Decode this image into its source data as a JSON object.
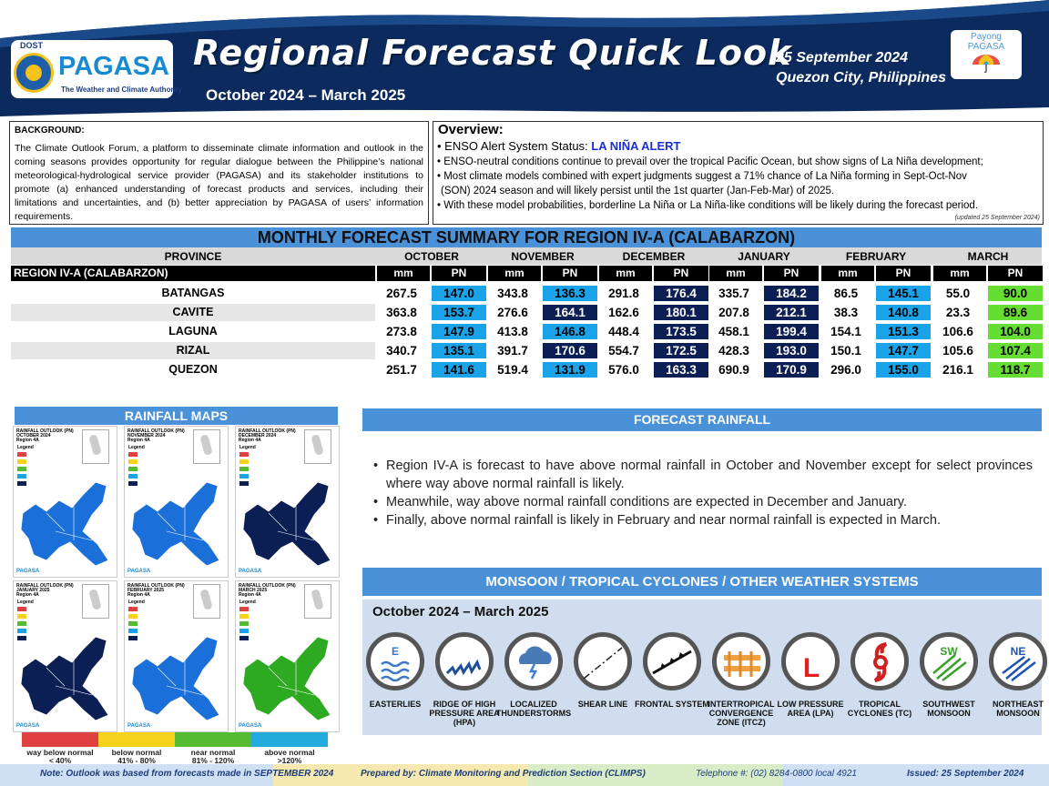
{
  "header": {
    "agency": "PAGASA",
    "dost": "DOST",
    "tagline": "The Weather and Climate Authority",
    "title": "Regional Forecast Quick Look",
    "period": "October 2024 – March 2025",
    "date": "25 September 2024",
    "place": "Quezon City, Philippines",
    "payong": "Payong PAGASA"
  },
  "background": {
    "heading": "BACKGROUND:",
    "text": "The Climate Outlook Forum, a platform to disseminate climate information and outlook in the coming seasons provides opportunity for regular dialogue between the Philippine’s national meteorological-hydrological service provider (PAGASA) and its stakeholder institutions to promote (a) enhanced understanding of forecast products and services, including their limitations and uncertainties, and (b) better appreciation by PAGASA of users’ information requirements."
  },
  "overview": {
    "heading": "Overview:",
    "status_prefix": "• ENSO Alert System Status: ",
    "status": "LA NIÑA ALERT",
    "b1": "• ENSO-neutral conditions continue to prevail over the tropical Pacific Ocean, but show signs of La Niña development;",
    "b2a": "• Most climate models combined with expert judgments suggest a 71% chance of La Niña forming in Sept-Oct-Nov",
    "b2b": "(SON) 2024 season and will likely persist until the 1st quarter (Jan-Feb-Mar) of 2025.",
    "b3": "• With these model probabilities, borderline La Niña or La Niña-like conditions will be likely during the forecast period.",
    "updated": "(updated 25 September 2024)"
  },
  "table": {
    "title": "MONTHLY FORECAST SUMMARY FOR REGION IV-A  (CALABARZON)",
    "province_header": "PROVINCE",
    "region": "REGION IV-A  (CALABARZON)",
    "months": [
      "OCTOBER",
      "NOVEMBER",
      "DECEMBER",
      "JANUARY",
      "FEBRUARY",
      "MARCH"
    ],
    "mm_label": "mm",
    "pn_label": "PN",
    "rows": [
      {
        "province": "BATANGAS",
        "mm": [
          "267.5",
          "343.8",
          "291.8",
          "335.7",
          "86.5",
          "55.0"
        ],
        "pn": [
          "147.0",
          "136.3",
          "176.4",
          "184.2",
          "145.1",
          "90.0"
        ],
        "cat": [
          "above",
          "above",
          "wayabove",
          "wayabove",
          "above",
          "near"
        ]
      },
      {
        "province": "CAVITE",
        "mm": [
          "363.8",
          "276.6",
          "162.6",
          "207.8",
          "38.3",
          "23.3"
        ],
        "pn": [
          "153.7",
          "164.1",
          "180.1",
          "212.1",
          "140.8",
          "89.6"
        ],
        "cat": [
          "above",
          "wayabove",
          "wayabove",
          "wayabove",
          "above",
          "near"
        ]
      },
      {
        "province": "LAGUNA",
        "mm": [
          "273.8",
          "413.8",
          "448.4",
          "458.1",
          "154.1",
          "106.6"
        ],
        "pn": [
          "147.9",
          "146.8",
          "173.5",
          "199.4",
          "151.3",
          "104.0"
        ],
        "cat": [
          "above",
          "above",
          "wayabove",
          "wayabove",
          "above",
          "near"
        ]
      },
      {
        "province": "RIZAL",
        "mm": [
          "340.7",
          "391.7",
          "554.7",
          "428.3",
          "150.1",
          "105.6"
        ],
        "pn": [
          "135.1",
          "170.6",
          "172.5",
          "193.0",
          "147.7",
          "107.4"
        ],
        "cat": [
          "above",
          "wayabove",
          "wayabove",
          "wayabove",
          "above",
          "near"
        ]
      },
      {
        "province": "QUEZON",
        "mm": [
          "251.7",
          "519.4",
          "576.0",
          "690.9",
          "296.0",
          "216.1"
        ],
        "pn": [
          "141.6",
          "131.9",
          "163.3",
          "170.9",
          "155.0",
          "118.7"
        ],
        "cat": [
          "above",
          "above",
          "wayabove",
          "wayabove",
          "above",
          "near"
        ]
      }
    ]
  },
  "colors": {
    "above": "#1aa3e8",
    "wayabove": "#0c1f55",
    "near": "#66dd33",
    "accent": "#4a91d8"
  },
  "maps": {
    "heading": "RAINFALL MAPS",
    "items": [
      {
        "t1": "RAINFALL OUTLOOK (PN)",
        "t2": "OCTOBER 2024",
        "t3": "Region 4A",
        "fill": "#1a6fd8"
      },
      {
        "t1": "RAINFALL OUTLOOK (PN)",
        "t2": "NOVEMBER 2024",
        "t3": "Region 4A",
        "fill": "#1a6fd8"
      },
      {
        "t1": "RAINFALL OUTLOOK (PN)",
        "t2": "DECEMBER 2024",
        "t3": "Region 4A",
        "fill": "#0c1f55"
      },
      {
        "t1": "RAINFALL OUTLOOK (PN)",
        "t2": "JANUARY 2025",
        "t3": "Region 4A",
        "fill": "#0c1f55"
      },
      {
        "t1": "RAINFALL OUTLOOK (PN)",
        "t2": "FEBRUARY 2025",
        "t3": "Region 4A",
        "fill": "#1a6fd8"
      },
      {
        "t1": "RAINFALL OUTLOOK (PN)",
        "t2": "MARCH 2025",
        "t3": "Region 4A",
        "fill": "#2eaa22"
      }
    ],
    "legend": "Legend",
    "scale": [
      {
        "l1": "way below normal",
        "l2": "< 40%",
        "color": "#e04040"
      },
      {
        "l1": "below normal",
        "l2": "41%  -  80%",
        "color": "#f5d21b"
      },
      {
        "l1": "near normal",
        "l2": "81% - 120%",
        "color": "#55bb33"
      },
      {
        "l1": "above normal",
        "l2": ">120%",
        "color": "#22aadd"
      }
    ]
  },
  "forecast": {
    "heading": "FORECAST RAINFALL",
    "bullets": [
      "Region IV-A is forecast to have above normal rainfall in October and November except for select provinces where way above normal rainfall is likely.",
      "Meanwhile, way above normal rainfall conditions are expected in December and January.",
      "Finally, above normal rainfall is likely in February and near normal rainfall is expected in March."
    ]
  },
  "systems": {
    "heading": "MONSOON / TROPICAL CYCLONES / OTHER WEATHER SYSTEMS",
    "period": "October 2024 – March 2025",
    "items": [
      {
        "label": "EASTERLIES",
        "icon": "easterlies-icon",
        "mark": "E"
      },
      {
        "label": "RIDGE OF HIGH PRESSURE AREA (HPA)",
        "icon": "ridge-icon",
        "mark": ""
      },
      {
        "label": "LOCALIZED THUNDERSTORMS",
        "icon": "thunderstorm-icon",
        "mark": ""
      },
      {
        "label": "SHEAR LINE",
        "icon": "shear-line-icon",
        "mark": ""
      },
      {
        "label": "FRONTAL SYSTEM",
        "icon": "frontal-icon",
        "mark": ""
      },
      {
        "label": "INTERTROPICAL CONVERGENCE ZONE (ITCZ)",
        "icon": "itcz-icon",
        "mark": ""
      },
      {
        "label": "LOW PRESSURE AREA (LPA)",
        "icon": "lpa-icon",
        "mark": "L"
      },
      {
        "label": "TROPICAL CYCLONES (TC)",
        "icon": "cyclone-icon",
        "mark": ""
      },
      {
        "label": "SOUTHWEST MONSOON",
        "icon": "sw-monsoon-icon",
        "mark": "SW"
      },
      {
        "label": "NORTHEAST MONSOON",
        "icon": "ne-monsoon-icon",
        "mark": "NE"
      }
    ]
  },
  "footer": {
    "note": "Note: Outlook was based from forecasts made in SEPTEMBER 2024",
    "prepared": "Prepared by: Climate Monitoring and Prediction Section (CLIMPS)",
    "telephone": "Telephone #: (02) 8284-0800 local 4921",
    "issued": "Issued: 25 September 2024"
  }
}
